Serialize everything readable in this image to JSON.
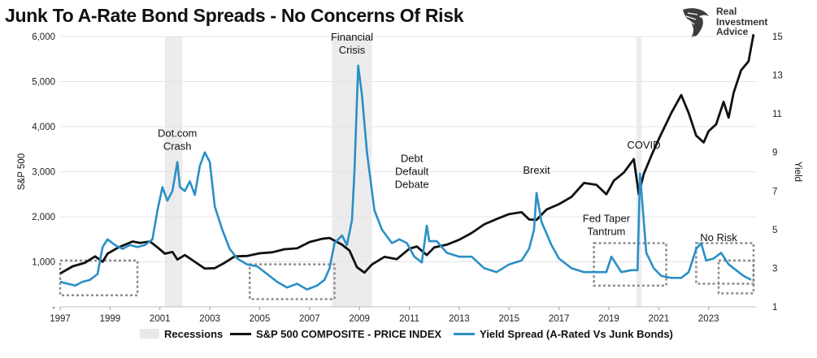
{
  "title": "Junk To A-Rate Bond Spreads - No Concerns Of Risk",
  "logo": {
    "line1": "Real",
    "line2": "Investment",
    "line3": "Advice"
  },
  "chart_data": {
    "type": "line",
    "title": "Junk To A-Rate Bond Spreads - No Concerns Of Risk",
    "ylabel": "S&P 500",
    "y2label": "Yield",
    "x_ticks": [
      "1997",
      "1999",
      "2001",
      "2003",
      "2005",
      "2007",
      "2009",
      "2011",
      "2013",
      "2015",
      "2017",
      "2019",
      "2021",
      "2023"
    ],
    "x_range": [
      1997.0,
      2024.9
    ],
    "y_ticks": [
      "-",
      "1,000",
      "2,000",
      "3,000",
      "4,000",
      "5,000",
      "6,000"
    ],
    "y_tick_values": [
      0,
      1000,
      2000,
      3000,
      4000,
      5000,
      6000
    ],
    "ylim": [
      0,
      6000
    ],
    "y2_ticks": [
      "1",
      "3",
      "5",
      "7",
      "9",
      "11",
      "13",
      "15"
    ],
    "y2_tick_values": [
      1,
      3,
      5,
      7,
      9,
      11,
      13,
      15
    ],
    "y2lim": [
      1,
      15
    ],
    "grid": true,
    "recessions": [
      [
        2001.2,
        2001.9
      ],
      [
        2007.9,
        2009.5
      ],
      [
        2020.1,
        2020.3
      ]
    ],
    "highlight_boxes": [
      {
        "x": [
          1997.0,
          2000.1
        ],
        "y2": [
          1.6,
          3.4
        ]
      },
      {
        "x": [
          2004.6,
          2008.0
        ],
        "y2": [
          1.4,
          3.2
        ]
      },
      {
        "x": [
          2018.4,
          2021.3
        ],
        "y2": [
          2.1,
          4.3
        ]
      },
      {
        "x": [
          2022.5,
          2024.8
        ],
        "y2": [
          2.2,
          4.3
        ]
      },
      {
        "x": [
          2023.4,
          2024.8
        ],
        "y2": [
          1.7,
          3.4
        ]
      }
    ],
    "annotations": [
      {
        "lines": [
          "Dot.com",
          "Crash"
        ],
        "x": 2001.7,
        "y2": 9.8
      },
      {
        "lines": [
          "Financial",
          "Crisis"
        ],
        "x": 2008.7,
        "y2": 14.8
      },
      {
        "lines": [
          "Debt",
          "Default",
          "Debate"
        ],
        "x": 2011.1,
        "y2": 8.5
      },
      {
        "lines": [
          "Brexit"
        ],
        "x": 2016.1,
        "y2": 7.9
      },
      {
        "lines": [
          "Fed Taper",
          "Tantrum"
        ],
        "x": 2018.9,
        "y2": 5.4
      },
      {
        "lines": [
          "COVID"
        ],
        "x": 2020.4,
        "y2": 9.2
      },
      {
        "lines": [
          "No Risk"
        ],
        "x": 2023.4,
        "y2": 4.4
      }
    ],
    "series": [
      {
        "name": "S&P 500 COMPOSITE - PRICE INDEX",
        "axis": "left",
        "color": "#111111",
        "x": [
          1997.0,
          1997.5,
          1998.0,
          1998.4,
          1998.7,
          1998.9,
          1999.3,
          1999.6,
          1999.9,
          2000.2,
          2000.6,
          2000.9,
          2001.2,
          2001.5,
          2001.7,
          2002.0,
          2002.4,
          2002.8,
          2003.2,
          2003.6,
          2004.0,
          2004.5,
          2005.0,
          2005.5,
          2006.0,
          2006.5,
          2007.0,
          2007.5,
          2007.8,
          2008.3,
          2008.6,
          2008.9,
          2009.2,
          2009.5,
          2010.0,
          2010.5,
          2011.0,
          2011.3,
          2011.7,
          2012.0,
          2012.5,
          2013.0,
          2013.5,
          2014.0,
          2014.5,
          2015.0,
          2015.5,
          2015.8,
          2016.1,
          2016.5,
          2017.0,
          2017.5,
          2018.0,
          2018.5,
          2018.9,
          2019.2,
          2019.6,
          2020.0,
          2020.2,
          2020.4,
          2020.7,
          2021.0,
          2021.5,
          2021.9,
          2022.2,
          2022.5,
          2022.8,
          2023.0,
          2023.3,
          2023.6,
          2023.8,
          2024.0,
          2024.3,
          2024.6,
          2024.8
        ],
        "values": [
          740,
          900,
          980,
          1120,
          1000,
          1180,
          1310,
          1380,
          1450,
          1420,
          1450,
          1320,
          1180,
          1220,
          1050,
          1150,
          1000,
          850,
          860,
          980,
          1120,
          1130,
          1190,
          1210,
          1280,
          1300,
          1440,
          1510,
          1530,
          1380,
          1250,
          880,
          760,
          940,
          1110,
          1060,
          1290,
          1340,
          1150,
          1320,
          1380,
          1490,
          1640,
          1830,
          1950,
          2060,
          2100,
          1940,
          1930,
          2160,
          2280,
          2440,
          2750,
          2710,
          2500,
          2800,
          2980,
          3280,
          2500,
          2950,
          3350,
          3720,
          4300,
          4700,
          4300,
          3800,
          3650,
          3900,
          4050,
          4550,
          4200,
          4750,
          5250,
          5450,
          6050
        ]
      },
      {
        "name": "Yield Spread (A-Rated Vs Junk Bonds)",
        "axis": "right",
        "color": "#2a8fc6",
        "x": [
          1997.0,
          1997.3,
          1997.6,
          1997.9,
          1998.2,
          1998.5,
          1998.7,
          1998.9,
          1999.2,
          1999.5,
          1999.8,
          2000.1,
          2000.4,
          2000.7,
          2000.9,
          2001.1,
          2001.3,
          2001.5,
          2001.7,
          2001.8,
          2002.0,
          2002.2,
          2002.4,
          2002.6,
          2002.8,
          2003.0,
          2003.2,
          2003.5,
          2003.8,
          2004.1,
          2004.5,
          2004.9,
          2005.3,
          2005.7,
          2006.1,
          2006.5,
          2006.9,
          2007.3,
          2007.6,
          2007.8,
          2008.0,
          2008.3,
          2008.5,
          2008.7,
          2008.8,
          2008.95,
          2009.1,
          2009.3,
          2009.6,
          2009.9,
          2010.3,
          2010.6,
          2010.9,
          2011.2,
          2011.5,
          2011.7,
          2011.8,
          2012.1,
          2012.5,
          2013.0,
          2013.5,
          2014.0,
          2014.5,
          2015.0,
          2015.5,
          2015.8,
          2016.0,
          2016.1,
          2016.3,
          2016.7,
          2017.0,
          2017.5,
          2018.0,
          2018.5,
          2018.9,
          2019.1,
          2019.5,
          2019.9,
          2020.15,
          2020.25,
          2020.5,
          2020.8,
          2021.1,
          2021.5,
          2021.9,
          2022.2,
          2022.5,
          2022.7,
          2022.9,
          2023.2,
          2023.5,
          2023.8,
          2024.1,
          2024.4,
          2024.7
        ],
        "values": [
          2.3,
          2.2,
          2.1,
          2.3,
          2.4,
          2.7,
          4.1,
          4.5,
          4.2,
          4.0,
          4.2,
          4.1,
          4.2,
          4.5,
          6.0,
          7.2,
          6.5,
          7.0,
          8.5,
          7.2,
          7.0,
          7.5,
          6.8,
          8.3,
          9.0,
          8.5,
          6.2,
          5.0,
          4.0,
          3.5,
          3.2,
          3.1,
          2.7,
          2.3,
          2.0,
          2.2,
          1.9,
          2.1,
          2.4,
          3.0,
          4.3,
          4.7,
          4.2,
          5.5,
          8.0,
          13.5,
          12.0,
          9.0,
          6.0,
          5.0,
          4.3,
          4.5,
          4.3,
          3.6,
          3.3,
          5.2,
          4.4,
          4.4,
          3.8,
          3.6,
          3.6,
          3.0,
          2.8,
          3.2,
          3.4,
          4.0,
          5.0,
          6.9,
          5.4,
          4.2,
          3.5,
          3.0,
          2.8,
          2.8,
          2.8,
          3.6,
          2.8,
          2.9,
          2.9,
          7.9,
          3.8,
          3.0,
          2.6,
          2.5,
          2.5,
          2.8,
          4.0,
          4.3,
          3.4,
          3.5,
          3.8,
          3.2,
          2.9,
          2.6,
          2.4
        ]
      }
    ]
  },
  "legend": {
    "recessions_label": "Recessions",
    "spx_label": "S&P 500 COMPOSITE - PRICE INDEX",
    "spread_label": "Yield Spread (A-Rated Vs Junk Bonds)"
  }
}
